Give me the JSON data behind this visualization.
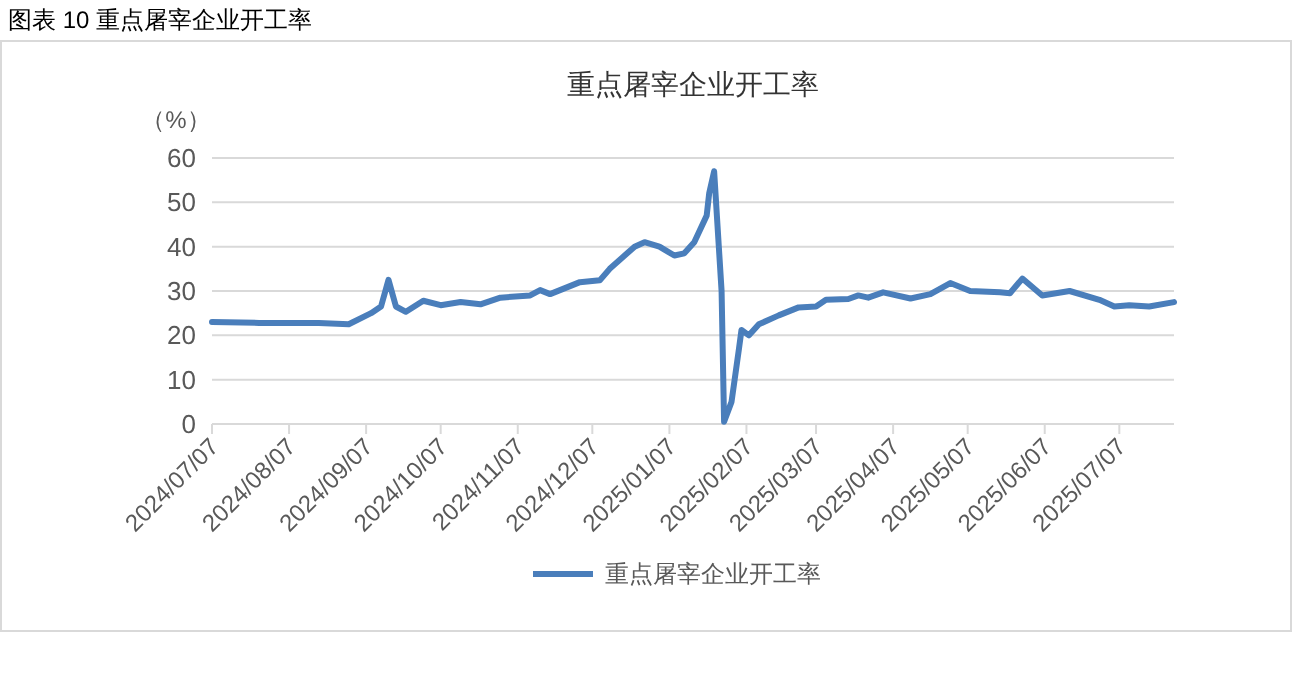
{
  "chart_data": {
    "type": "line",
    "title": "图表 10 重点屠宰企业开工率",
    "subtitle": "重点屠宰企业开工率",
    "ylabel": "（%）",
    "x": [
      "2024-07-07",
      "2024-07-26",
      "2024-08-19",
      "2024-08-31",
      "2024-09-09",
      "2024-09-13",
      "2024-09-16",
      "2024-09-19",
      "2024-09-23",
      "2024-09-30",
      "2024-10-07",
      "2024-10-15",
      "2024-10-23",
      "2024-10-31",
      "2024-11-12",
      "2024-11-16",
      "2024-11-20",
      "2024-12-02",
      "2024-12-10",
      "2024-12-14",
      "2024-12-20",
      "2024-12-24",
      "2024-12-28",
      "2025-01-03",
      "2025-01-09",
      "2025-01-13",
      "2025-01-17",
      "2025-01-22",
      "2025-01-23",
      "2025-01-25",
      "2025-01-28",
      "2025-01-29",
      "2025-02-01",
      "2025-02-04",
      "2025-02-05",
      "2025-02-08",
      "2025-02-12",
      "2025-02-20",
      "2025-02-28",
      "2025-03-07",
      "2025-03-11",
      "2025-03-20",
      "2025-03-24",
      "2025-03-28",
      "2025-04-03",
      "2025-04-14",
      "2025-04-22",
      "2025-04-30",
      "2025-05-08",
      "2025-05-20",
      "2025-05-24",
      "2025-05-29",
      "2025-06-06",
      "2025-06-17",
      "2025-06-29",
      "2025-07-05",
      "2025-07-11",
      "2025-07-19",
      "2025-07-29"
    ],
    "series": [
      {
        "name": "重点屠宰企业开工率",
        "color": "#4a7ebb",
        "values": [
          23,
          22.8,
          22.8,
          22.5,
          25,
          26.5,
          32.5,
          26.5,
          25.3,
          27.8,
          26.8,
          27.5,
          27,
          28.5,
          29,
          30.2,
          29.3,
          32,
          32.4,
          35,
          38,
          40,
          41,
          40,
          38,
          38.5,
          41,
          47,
          52,
          57,
          30,
          0.5,
          5,
          17,
          21.2,
          20,
          22.5,
          24.5,
          26.3,
          26.5,
          28,
          28.2,
          29,
          28.5,
          29.7,
          28.3,
          29.3,
          31.8,
          30,
          29.7,
          29.5,
          32.8,
          29,
          30,
          28,
          26.5,
          26.8,
          26.5,
          27.5
        ]
      }
    ],
    "xlim": [
      "2024-07-07",
      "2025-07-29"
    ],
    "xticks": [
      {
        "value": "2024-07-07",
        "label": "2024/07/07"
      },
      {
        "value": "2024-08-07",
        "label": "2024/08/07"
      },
      {
        "value": "2024-09-07",
        "label": "2024/09/07"
      },
      {
        "value": "2024-10-07",
        "label": "2024/10/07"
      },
      {
        "value": "2024-11-07",
        "label": "2024/11/07"
      },
      {
        "value": "2024-12-07",
        "label": "2024/12/07"
      },
      {
        "value": "2025-01-07",
        "label": "2025/01/07"
      },
      {
        "value": "2025-02-07",
        "label": "2025/02/07"
      },
      {
        "value": "2025-03-07",
        "label": "2025/03/07"
      },
      {
        "value": "2025-04-07",
        "label": "2025/04/07"
      },
      {
        "value": "2025-05-07",
        "label": "2025/05/07"
      },
      {
        "value": "2025-06-07",
        "label": "2025/06/07"
      },
      {
        "value": "2025-07-07",
        "label": "2025/07/07"
      }
    ],
    "ylim": [
      0,
      60
    ],
    "yticks": [
      0,
      10,
      20,
      30,
      40,
      50,
      60
    ],
    "grid": "y",
    "legend": "bottom",
    "marker": "none",
    "line_style": "solid"
  }
}
